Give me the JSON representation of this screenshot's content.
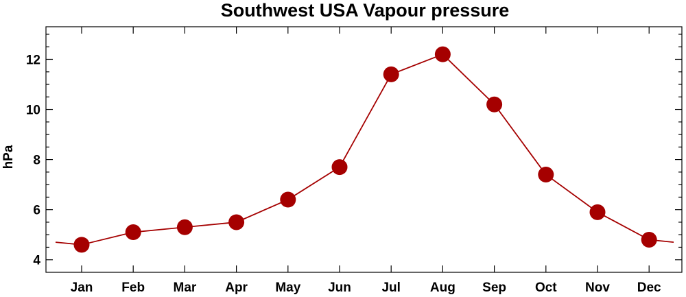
{
  "chart_data": {
    "type": "line",
    "title": "Southwest USA Vapour pressure",
    "xlabel": "",
    "ylabel": "hPa",
    "categories": [
      "Jan",
      "Feb",
      "Mar",
      "Apr",
      "May",
      "Jun",
      "Jul",
      "Aug",
      "Sep",
      "Oct",
      "Nov",
      "Dec"
    ],
    "series": [
      {
        "values": [
          4.6,
          5.1,
          5.3,
          5.5,
          6.4,
          7.7,
          11.4,
          12.2,
          10.2,
          7.4,
          5.9,
          4.8
        ],
        "color": "#a50000",
        "marker": "circle"
      }
    ],
    "line_extends_beyond_first_last": true,
    "yticks": [
      4,
      6,
      8,
      10,
      12
    ],
    "ylim": [
      3.5,
      13.3
    ],
    "grid": false,
    "legend": "none"
  }
}
